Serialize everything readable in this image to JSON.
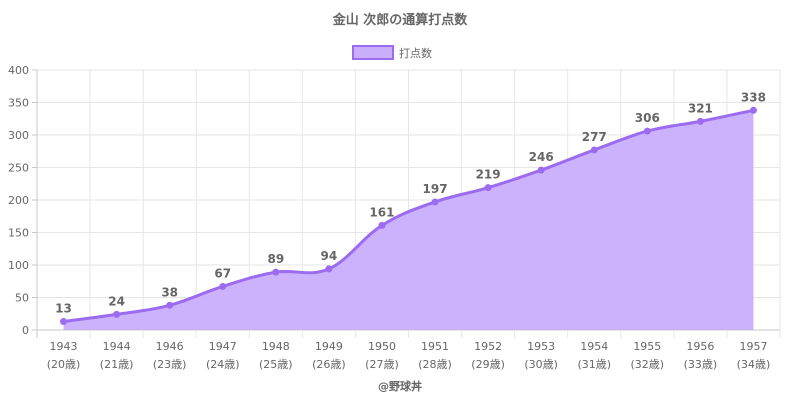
{
  "chart_data": {
    "type": "area",
    "title": "金山 次郎の通算打点数",
    "legend": {
      "label": "打点数",
      "position": "top"
    },
    "credit": "@野球丼",
    "x": [
      "1943",
      "1944",
      "1946",
      "1947",
      "1948",
      "1949",
      "1950",
      "1951",
      "1952",
      "1953",
      "1954",
      "1955",
      "1956",
      "1957"
    ],
    "x_sub": [
      "(20歳)",
      "(21歳)",
      "(23歳)",
      "(24歳)",
      "(25歳)",
      "(26歳)",
      "(27歳)",
      "(28歳)",
      "(29歳)",
      "(30歳)",
      "(31歳)",
      "(32歳)",
      "(33歳)",
      "(34歳)"
    ],
    "series": [
      {
        "name": "打点数",
        "values": [
          13,
          24,
          38,
          67,
          89,
          94,
          161,
          197,
          219,
          246,
          277,
          306,
          321,
          338
        ]
      }
    ],
    "ylim": [
      0,
      400
    ],
    "yticks": [
      0,
      50,
      100,
      150,
      200,
      250,
      300,
      350,
      400
    ],
    "grid": true,
    "colors": {
      "line": "#9b6cf0",
      "fill": "#c9aefc",
      "point": "#9b6cf0",
      "legend_box": "#c9aefc"
    }
  }
}
